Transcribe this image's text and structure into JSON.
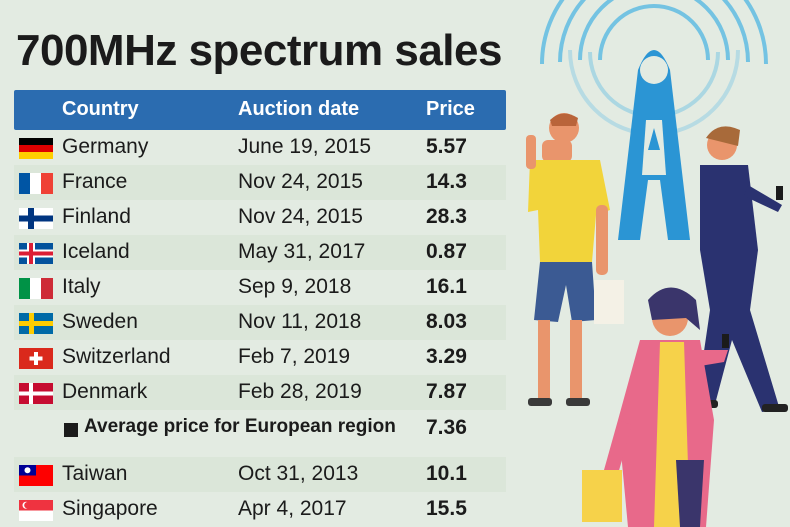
{
  "chart_data": {
    "type": "table",
    "title": "700MHz spectrum sales",
    "columns": [
      "Country",
      "Auction date",
      "Price"
    ],
    "rows": [
      {
        "country": "Germany",
        "flag": "germany-flag",
        "date": "June 19, 2015",
        "price": "5.57"
      },
      {
        "country": "France",
        "flag": "france-flag",
        "date": "Nov 24, 2015",
        "price": "14.3"
      },
      {
        "country": "Finland",
        "flag": "finland-flag",
        "date": "Nov 24, 2015",
        "price": "28.3"
      },
      {
        "country": "Iceland",
        "flag": "iceland-flag",
        "date": "May 31, 2017",
        "price": "0.87"
      },
      {
        "country": "Italy",
        "flag": "italy-flag",
        "date": "Sep 9, 2018",
        "price": "16.1"
      },
      {
        "country": "Sweden",
        "flag": "sweden-flag",
        "date": "Nov 11, 2018",
        "price": "8.03"
      },
      {
        "country": "Switzerland",
        "flag": "switzerland-flag",
        "date": "Feb 7, 2019",
        "price": "3.29"
      },
      {
        "country": "Denmark",
        "flag": "denmark-flag",
        "date": "Feb 28, 2019",
        "price": "7.87"
      }
    ],
    "average": {
      "label": "Average price for European region",
      "price": "7.36"
    },
    "asia_rows": [
      {
        "country": "Taiwan",
        "flag": "taiwan-flag",
        "date": "Oct 31, 2013",
        "price": "10.1"
      },
      {
        "country": "Singapore",
        "flag": "singapore-flag",
        "date": "Apr 4, 2017",
        "price": "15.5"
      }
    ]
  },
  "colors": {
    "background": "#e3ebe2",
    "header": "#2b6cb0",
    "row_stripe": "#dbe6d9",
    "text": "#1b1b1b",
    "tower_blue": "#2b95d4"
  }
}
